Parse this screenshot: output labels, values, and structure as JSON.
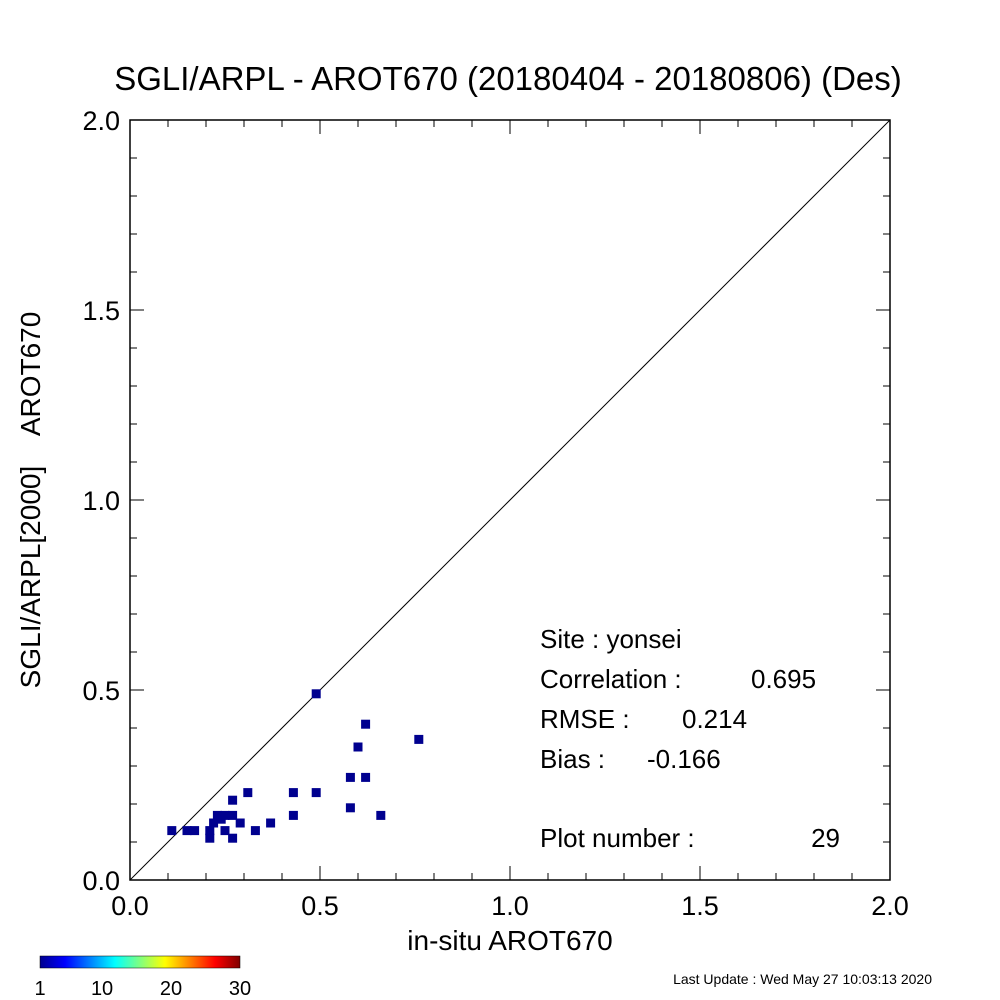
{
  "chart_data": {
    "type": "scatter",
    "title": "SGLI/ARPL - AROT670 (20180404 - 20180806) (Des)",
    "xlabel": "in-situ AROT670",
    "ylabel": "SGLI/ARPL[2000]    AROT670",
    "xlim": [
      0.0,
      2.0
    ],
    "ylim": [
      0.0,
      2.0
    ],
    "xticks": [
      "0.0",
      "0.5",
      "1.0",
      "1.5",
      "2.0"
    ],
    "yticks": [
      "0.0",
      "0.5",
      "1.0",
      "1.5",
      "2.0"
    ],
    "tick_values": [
      0.0,
      0.5,
      1.0,
      1.5,
      2.0
    ],
    "reference_line": "1:1",
    "grid": false,
    "marker_color": "#00008f",
    "points": [
      {
        "x": 0.11,
        "y": 0.13
      },
      {
        "x": 0.15,
        "y": 0.13
      },
      {
        "x": 0.17,
        "y": 0.13
      },
      {
        "x": 0.21,
        "y": 0.11
      },
      {
        "x": 0.21,
        "y": 0.13
      },
      {
        "x": 0.22,
        "y": 0.15
      },
      {
        "x": 0.23,
        "y": 0.17
      },
      {
        "x": 0.24,
        "y": 0.16
      },
      {
        "x": 0.25,
        "y": 0.13
      },
      {
        "x": 0.25,
        "y": 0.17
      },
      {
        "x": 0.27,
        "y": 0.11
      },
      {
        "x": 0.27,
        "y": 0.17
      },
      {
        "x": 0.27,
        "y": 0.21
      },
      {
        "x": 0.29,
        "y": 0.15
      },
      {
        "x": 0.31,
        "y": 0.23
      },
      {
        "x": 0.33,
        "y": 0.13
      },
      {
        "x": 0.37,
        "y": 0.15
      },
      {
        "x": 0.43,
        "y": 0.17
      },
      {
        "x": 0.43,
        "y": 0.23
      },
      {
        "x": 0.49,
        "y": 0.23
      },
      {
        "x": 0.49,
        "y": 0.49
      },
      {
        "x": 0.58,
        "y": 0.19
      },
      {
        "x": 0.58,
        "y": 0.27
      },
      {
        "x": 0.6,
        "y": 0.35
      },
      {
        "x": 0.62,
        "y": 0.27
      },
      {
        "x": 0.62,
        "y": 0.41
      },
      {
        "x": 0.66,
        "y": 0.17
      },
      {
        "x": 0.76,
        "y": 0.37
      }
    ],
    "stats": {
      "site": "Site : yonsei",
      "correlation_label": "Correlation :",
      "correlation_value": "0.695",
      "rmse_label": "RMSE :",
      "rmse_value": "0.214",
      "bias_label": "Bias :",
      "bias_value": "-0.166",
      "plot_number_label": "Plot number :",
      "plot_number_value": "29"
    },
    "colorbar": {
      "range": [
        1,
        30
      ],
      "labels": [
        "1",
        "10",
        "20",
        "30"
      ],
      "label_values": [
        1,
        10,
        20,
        30
      ],
      "colormap": "jet"
    }
  },
  "footer": {
    "last_update": "Last Update : Wed May 27 10:03:13 2020"
  }
}
